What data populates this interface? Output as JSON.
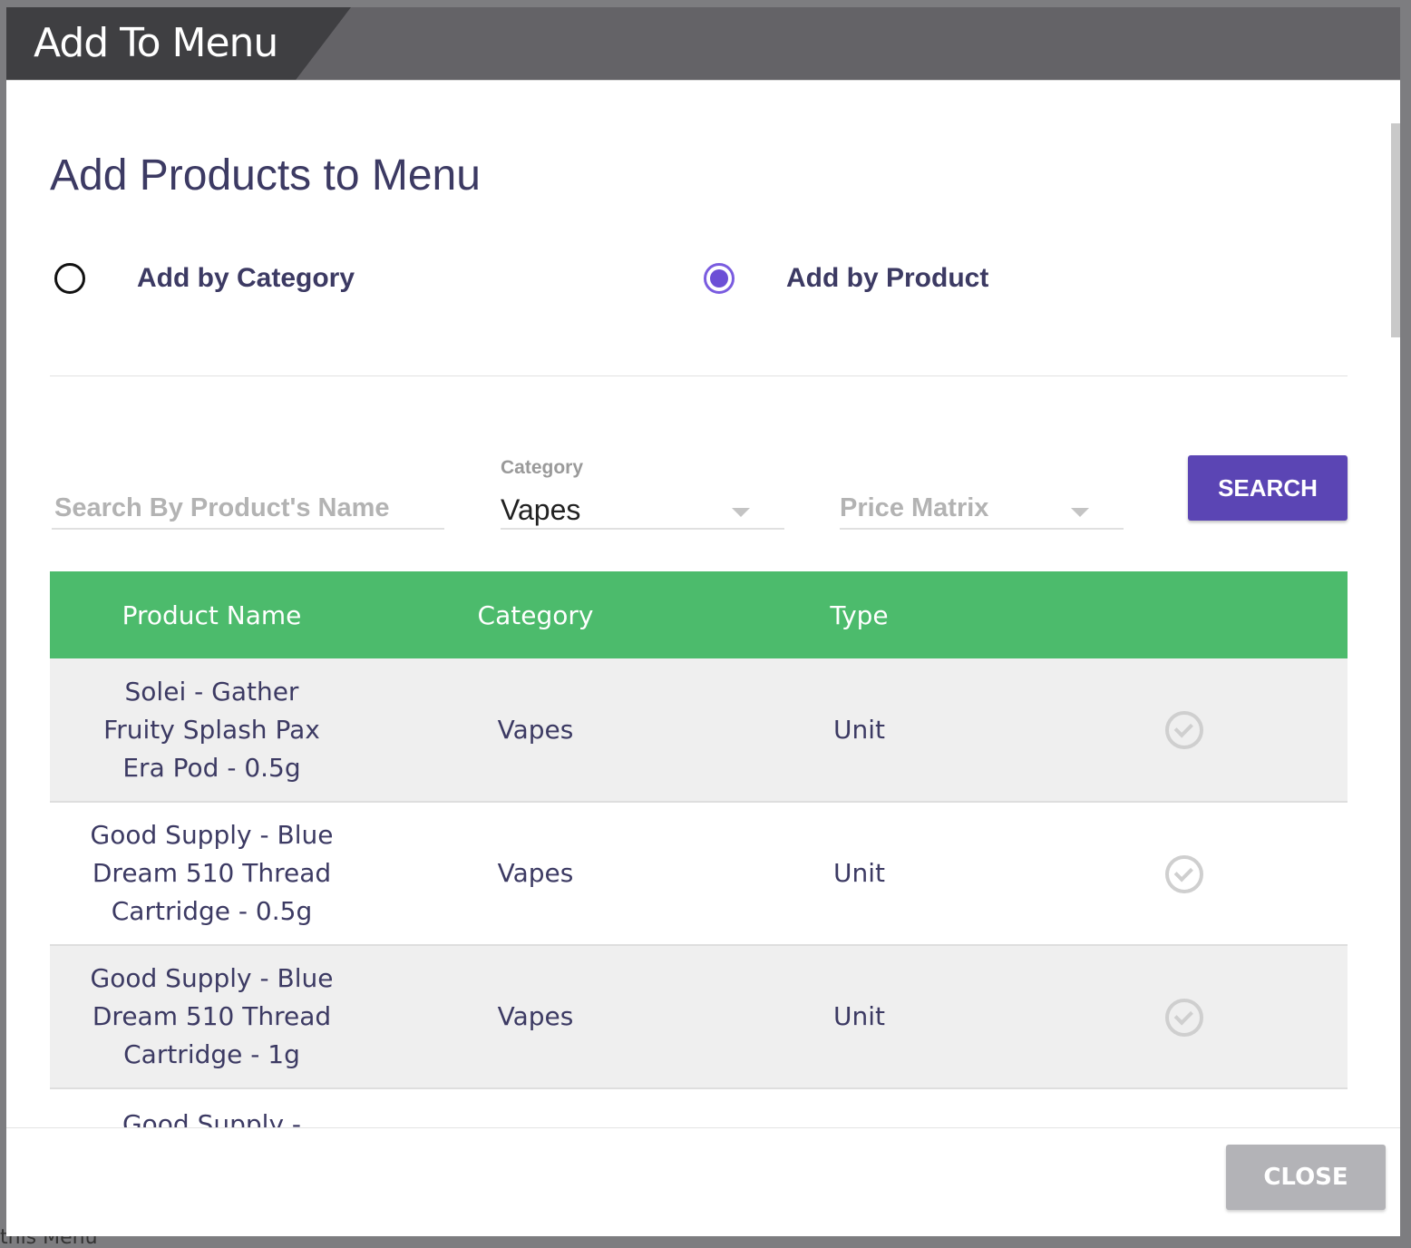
{
  "background": {
    "peek_text": "this Menu"
  },
  "modal": {
    "header_title": "Add To Menu",
    "page_title": "Add Products to Menu",
    "radio_options": [
      {
        "label": "Add by Category",
        "selected": false
      },
      {
        "label": "Add by Product",
        "selected": true
      }
    ],
    "filters": {
      "search_placeholder": "Search By Product's Name",
      "search_value": "",
      "category_label": "Category",
      "category_value": "Vapes",
      "price_matrix_placeholder": "Price Matrix",
      "search_button": "SEARCH"
    },
    "table": {
      "headers": [
        "Product Name",
        "Category",
        "Type",
        ""
      ],
      "rows": [
        {
          "name": "Solei - Gather Fruity Splash Pax Era Pod - 0.5g",
          "category": "Vapes",
          "type": "Unit",
          "action_icon": "check-circle-icon"
        },
        {
          "name": "Good Supply - Blue Dream 510 Thread Cartridge - 0.5g",
          "category": "Vapes",
          "type": "Unit",
          "action_icon": "check-circle-icon"
        },
        {
          "name": "Good Supply - Blue Dream 510 Thread Cartridge - 1g",
          "category": "Vapes",
          "type": "Unit",
          "action_icon": "check-circle-icon"
        },
        {
          "name": "Good Supply -",
          "category": "",
          "type": "",
          "action_icon": ""
        }
      ]
    },
    "footer": {
      "close_button": "CLOSE"
    }
  },
  "colors": {
    "accent_purple": "#5b45b4",
    "table_header_green": "#4cbb6c",
    "header_dark": "#3f3f42",
    "header_gray": "#646367",
    "text_navy": "#3c3a63",
    "close_gray": "#b3b3b7"
  }
}
